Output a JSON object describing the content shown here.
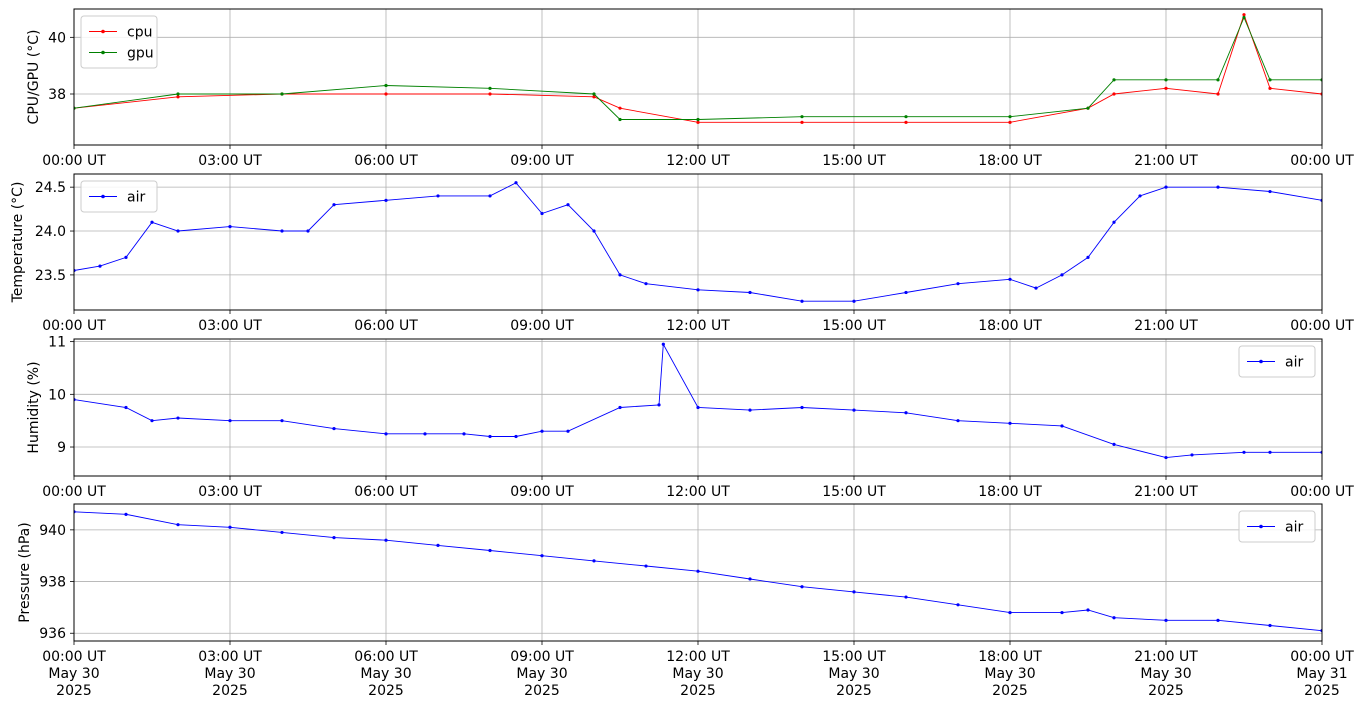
{
  "chart_data": [
    {
      "type": "line",
      "ylabel": "CPU/GPU (°C)",
      "xlim": [
        "00:00 UT",
        "00:00 UT"
      ],
      "ylim": [
        36.2,
        41.0
      ],
      "yticks": [
        "38",
        "40"
      ],
      "grid": true,
      "legend": "top-left",
      "x": [
        "00:00",
        "02:00",
        "04:00",
        "06:00",
        "08:00",
        "10:00",
        "10:30",
        "12:00",
        "14:00",
        "16:00",
        "18:00",
        "19:30",
        "20:00",
        "21:00",
        "22:00",
        "22:30",
        "23:00",
        "24:00"
      ],
      "series": [
        {
          "name": "cpu",
          "color": "#ff0000",
          "values": [
            37.5,
            37.9,
            38.0,
            38.0,
            38.0,
            37.9,
            37.5,
            37.0,
            37.0,
            37.0,
            37.0,
            37.5,
            38.0,
            38.2,
            38.0,
            40.8,
            38.2,
            38.0
          ]
        },
        {
          "name": "gpu",
          "color": "#008000",
          "values": [
            37.5,
            38.0,
            38.0,
            38.3,
            38.2,
            38.0,
            37.1,
            37.1,
            37.2,
            37.2,
            37.2,
            37.5,
            38.5,
            38.5,
            38.5,
            40.7,
            38.5,
            38.5
          ]
        }
      ]
    },
    {
      "type": "line",
      "ylabel": "Temperature (°C)",
      "ylim": [
        23.1,
        24.65
      ],
      "yticks": [
        "23.5",
        "24.0",
        "24.5"
      ],
      "grid": true,
      "legend": "top-left",
      "x": [
        "00:00",
        "00:30",
        "01:00",
        "01:30",
        "02:00",
        "03:00",
        "04:00",
        "04:30",
        "05:00",
        "06:00",
        "07:00",
        "08:00",
        "08:30",
        "09:00",
        "09:30",
        "10:00",
        "10:30",
        "11:00",
        "12:00",
        "13:00",
        "14:00",
        "15:00",
        "16:00",
        "17:00",
        "18:00",
        "18:30",
        "19:00",
        "19:30",
        "20:00",
        "20:30",
        "21:00",
        "22:00",
        "23:00",
        "24:00"
      ],
      "series": [
        {
          "name": "air",
          "color": "#0000ff",
          "values": [
            23.55,
            23.6,
            23.7,
            24.1,
            24.0,
            24.05,
            24.0,
            24.0,
            24.3,
            24.35,
            24.4,
            24.4,
            24.55,
            24.2,
            24.3,
            24.0,
            23.5,
            23.4,
            23.33,
            23.3,
            23.2,
            23.2,
            23.3,
            23.4,
            23.45,
            23.35,
            23.5,
            23.7,
            24.1,
            24.4,
            24.5,
            24.5,
            24.45,
            24.35
          ]
        }
      ]
    },
    {
      "type": "line",
      "ylabel": "Humidity (%)",
      "ylim": [
        8.45,
        11.05
      ],
      "yticks": [
        "9",
        "10",
        "11"
      ],
      "grid": true,
      "legend": "top-right",
      "x": [
        "00:00",
        "01:00",
        "01:30",
        "02:00",
        "03:00",
        "04:00",
        "05:00",
        "06:00",
        "06:45",
        "07:30",
        "08:00",
        "08:30",
        "09:00",
        "09:30",
        "10:30",
        "11:15",
        "11:20",
        "12:00",
        "13:00",
        "14:00",
        "15:00",
        "16:00",
        "17:00",
        "18:00",
        "19:00",
        "20:00",
        "21:00",
        "21:30",
        "22:30",
        "23:00",
        "24:00"
      ],
      "series": [
        {
          "name": "air",
          "color": "#0000ff",
          "values": [
            9.9,
            9.75,
            9.5,
            9.55,
            9.5,
            9.5,
            9.35,
            9.25,
            9.25,
            9.25,
            9.2,
            9.2,
            9.3,
            9.3,
            9.75,
            9.8,
            10.95,
            9.75,
            9.7,
            9.75,
            9.7,
            9.65,
            9.5,
            9.45,
            9.4,
            9.05,
            8.8,
            8.85,
            8.9,
            8.9,
            8.9
          ]
        }
      ]
    },
    {
      "type": "line",
      "ylabel": "Pressure (hPa)",
      "ylim": [
        935.7,
        941.0
      ],
      "yticks": [
        "936",
        "938",
        "940"
      ],
      "grid": true,
      "legend": "top-right",
      "x": [
        "00:00",
        "01:00",
        "02:00",
        "03:00",
        "04:00",
        "05:00",
        "06:00",
        "07:00",
        "08:00",
        "09:00",
        "10:00",
        "11:00",
        "12:00",
        "13:00",
        "14:00",
        "15:00",
        "16:00",
        "17:00",
        "18:00",
        "19:00",
        "19:30",
        "20:00",
        "21:00",
        "22:00",
        "23:00",
        "24:00"
      ],
      "series": [
        {
          "name": "air",
          "color": "#0000ff",
          "values": [
            940.7,
            940.6,
            940.2,
            940.1,
            939.9,
            939.7,
            939.6,
            939.4,
            939.2,
            939.0,
            938.8,
            938.6,
            938.4,
            938.1,
            937.8,
            937.6,
            937.4,
            937.1,
            936.8,
            936.8,
            936.9,
            936.6,
            936.5,
            936.5,
            936.3,
            936.1
          ]
        }
      ]
    }
  ],
  "x_axis": {
    "ticks": [
      "00:00 UT",
      "03:00 UT",
      "06:00 UT",
      "09:00 UT",
      "12:00 UT",
      "15:00 UT",
      "18:00 UT",
      "21:00 UT",
      "00:00 UT"
    ],
    "bottom_dates": [
      "May 30",
      "May 30",
      "May 30",
      "May 30",
      "May 30",
      "May 30",
      "May 30",
      "May 30",
      "May 31"
    ],
    "bottom_years": [
      "2025",
      "2025",
      "2025",
      "2025",
      "2025",
      "2025",
      "2025",
      "2025",
      "2025"
    ]
  }
}
